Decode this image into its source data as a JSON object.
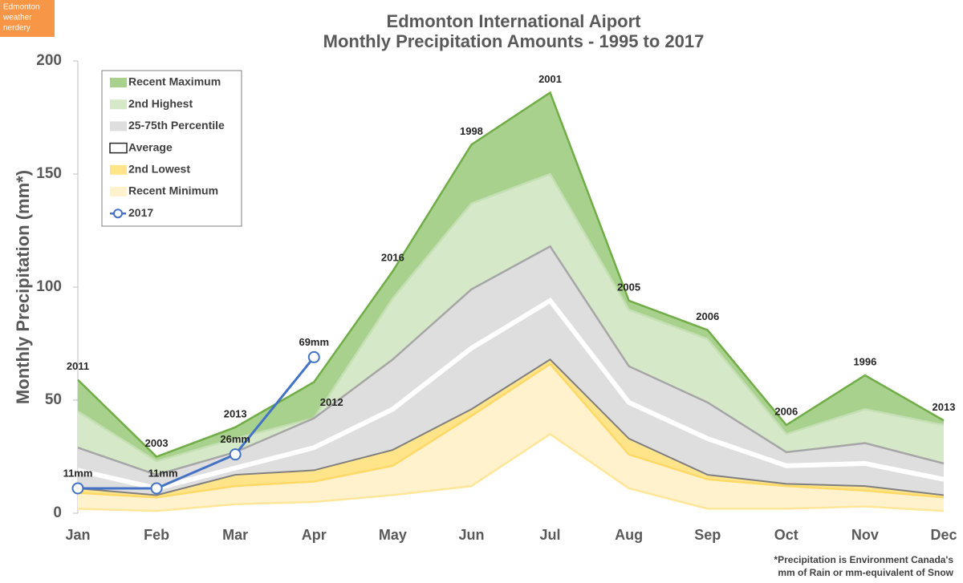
{
  "chart_data": {
    "type": "area",
    "title": "Edmonton International Aiport",
    "subtitle": "Monthly Precipitation Amounts - 1995 to 2017",
    "y_label": "Monthly Precipitation (mm*)",
    "badge": [
      "Edmonton",
      "weather",
      "nerdery"
    ],
    "footnote": [
      "*Precipitation is Environment Canada's",
      "mm of Rain or mm-equivalent of Snow"
    ],
    "categories": [
      "Jan",
      "Feb",
      "Mar",
      "Apr",
      "May",
      "Jun",
      "Jul",
      "Aug",
      "Sep",
      "Oct",
      "Nov",
      "Dec"
    ],
    "ylim": [
      0,
      200
    ],
    "yticks": [
      0,
      50,
      100,
      150,
      200
    ],
    "max_years": [
      "2011",
      "2003",
      "2013",
      "2012",
      "2016",
      "1998",
      "2001",
      "2005",
      "2006",
      "2006",
      "1996",
      "2013"
    ],
    "series": [
      {
        "name": "Recent Maximum",
        "color": "#a9d18e",
        "line": "#70ad47",
        "values": [
          59,
          25,
          38,
          58,
          107,
          163,
          186,
          94,
          81,
          39,
          61,
          41
        ]
      },
      {
        "name": "2nd Highest",
        "color": "#d5e8c8",
        "line": "#c5dfb4",
        "values": [
          45,
          23,
          33,
          42,
          95,
          137,
          150,
          90,
          77,
          35,
          46,
          39
        ]
      },
      {
        "name": "25-75th Percentile",
        "color": "#dedede",
        "line": "#a6a6a6",
        "values": [
          29,
          17,
          27,
          42,
          68,
          99,
          118,
          65,
          49,
          27,
          31,
          22
        ],
        "low": [
          11,
          8,
          17,
          19,
          28,
          46,
          68,
          33,
          17,
          13,
          12,
          8
        ]
      },
      {
        "name": "Average",
        "color": "#ffffff",
        "line": "#ffffff",
        "values": [
          19,
          11,
          20,
          29,
          46,
          73,
          94,
          49,
          33,
          21,
          22,
          15
        ]
      },
      {
        "name": "2nd Lowest",
        "color": "#ffe48a",
        "line": "#ffd966",
        "values": [
          9,
          7,
          12,
          14,
          21,
          43,
          66,
          26,
          15,
          12,
          10,
          7
        ]
      },
      {
        "name": "Recent Minimum",
        "color": "#fff2cc",
        "line": "#ffe699",
        "values": [
          2,
          1,
          4,
          5,
          8,
          12,
          35,
          11,
          2,
          2,
          3,
          1
        ]
      },
      {
        "name": "2017",
        "color": "#4472c4",
        "values": [
          11,
          11,
          26,
          69,
          null,
          null,
          null,
          null,
          null,
          null,
          null,
          null
        ],
        "value_labels": [
          "11mm",
          "11mm",
          "26mm",
          "69mm",
          null,
          null,
          null,
          null,
          null,
          null,
          null,
          null
        ]
      }
    ]
  }
}
